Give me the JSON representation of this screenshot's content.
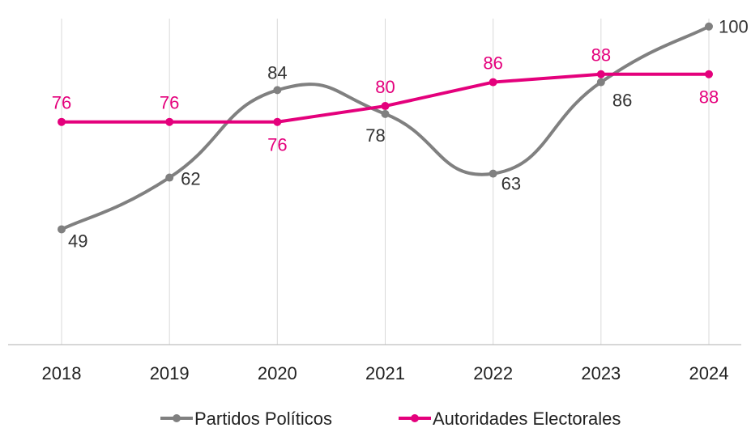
{
  "chart_data": {
    "type": "line",
    "categories": [
      "2018",
      "2019",
      "2020",
      "2021",
      "2022",
      "2023",
      "2024"
    ],
    "ylim": [
      20,
      103
    ],
    "grid": "vertical lines at categories",
    "legend_position": "bottom",
    "series": [
      {
        "name": "Partidos Políticos",
        "color": "#808080",
        "smooth": true,
        "values": [
          49,
          62,
          84,
          78,
          63,
          86,
          100
        ]
      },
      {
        "name": "Autoridades Electorales",
        "color": "#e4007c",
        "smooth": false,
        "values": [
          76,
          76,
          76,
          80,
          86,
          88,
          88
        ]
      }
    ]
  }
}
